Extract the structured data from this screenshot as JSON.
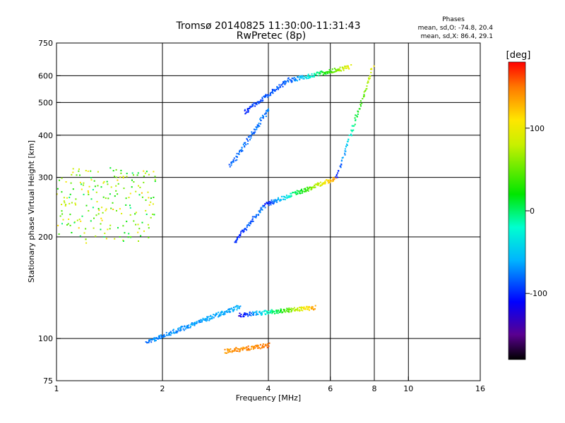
{
  "chart_data": {
    "type": "scatter",
    "title": "Tromsø 20140825 11:30:00-11:31:43",
    "subtitle": "RwPretec (8p)",
    "xlabel": "Frequency [MHz]",
    "ylabel": "Stationary phase Virtual Height [km]",
    "x_scale": "log",
    "y_scale": "log",
    "xlim": [
      1,
      16
    ],
    "ylim": [
      75,
      750
    ],
    "x_ticks": [
      {
        "value": 1,
        "label": "1"
      },
      {
        "value": 2,
        "label": "2"
      },
      {
        "value": 4,
        "label": "4"
      },
      {
        "value": 6,
        "label": "6"
      },
      {
        "value": 8,
        "label": "8"
      },
      {
        "value": 10,
        "label": "10"
      },
      {
        "value": 16,
        "label": "16"
      }
    ],
    "x_gridlines": [
      2,
      4,
      6,
      8,
      10
    ],
    "y_ticks": [
      {
        "value": 75,
        "label": "75"
      },
      {
        "value": 100,
        "label": "100"
      },
      {
        "value": 200,
        "label": "200"
      },
      {
        "value": 300,
        "label": "300"
      },
      {
        "value": 400,
        "label": "400"
      },
      {
        "value": 500,
        "label": "500"
      },
      {
        "value": 600,
        "label": "600"
      },
      {
        "value": 750,
        "label": "750"
      }
    ],
    "y_gridlines": [
      100,
      200,
      300,
      400,
      500,
      600
    ],
    "grid": true,
    "info": {
      "heading": "Phases",
      "line_o": "mean, sd,O: -74.8, 20.4",
      "line_x": "mean, sd,X:  86.4, 29.1"
    },
    "colorbar": {
      "label": "[deg]",
      "range": [
        -180,
        180
      ],
      "ticks": [
        {
          "value": 100,
          "label": "100"
        },
        {
          "value": 0,
          "label": "0"
        },
        {
          "value": -100,
          "label": "-100"
        }
      ],
      "stops": [
        {
          "value": -180,
          "color": "#000000"
        },
        {
          "value": -150,
          "color": "#5a0090"
        },
        {
          "value": -110,
          "color": "#0000ff"
        },
        {
          "value": -60,
          "color": "#00b4ff"
        },
        {
          "value": -20,
          "color": "#00ffd0"
        },
        {
          "value": 20,
          "color": "#00e600"
        },
        {
          "value": 80,
          "color": "#c8f000"
        },
        {
          "value": 110,
          "color": "#ffe600"
        },
        {
          "value": 150,
          "color": "#ff7800"
        },
        {
          "value": 180,
          "color": "#ff0000"
        }
      ]
    },
    "series": [
      {
        "x": [
          1,
          1.9
        ],
        "y": [
          195,
          320
        ],
        "phase": [
          0,
          120
        ]
      },
      {
        "x": [
          3.1,
          4.0
        ],
        "y": [
          325,
          480
        ],
        "phase": [
          -85,
          -75
        ]
      },
      {
        "x": [
          3.4,
          4.6
        ],
        "y": [
          470,
          590
        ],
        "phase": [
          -100,
          -80
        ]
      },
      {
        "x": [
          4.6,
          6.8
        ],
        "y": [
          585,
          640
        ],
        "phase": [
          -90,
          100
        ]
      },
      {
        "x": [
          3.2,
          3.9
        ],
        "y": [
          195,
          250
        ],
        "phase": [
          -100,
          -75
        ]
      },
      {
        "x": [
          3.9,
          6.2
        ],
        "y": [
          250,
          300
        ],
        "phase": [
          -110,
          140
        ]
      },
      {
        "x": [
          6.2,
          7.9
        ],
        "y": [
          300,
          640
        ],
        "phase": [
          -110,
          100
        ]
      },
      {
        "x": [
          1.8,
          3.3
        ],
        "y": [
          98,
          125
        ],
        "phase": [
          -75,
          -60
        ]
      },
      {
        "x": [
          3.3,
          5.4
        ],
        "y": [
          118,
          124
        ],
        "phase": [
          -120,
          140
        ]
      },
      {
        "x": [
          3.0,
          4.0
        ],
        "y": [
          92,
          96
        ],
        "phase": [
          140,
          150
        ]
      }
    ]
  }
}
